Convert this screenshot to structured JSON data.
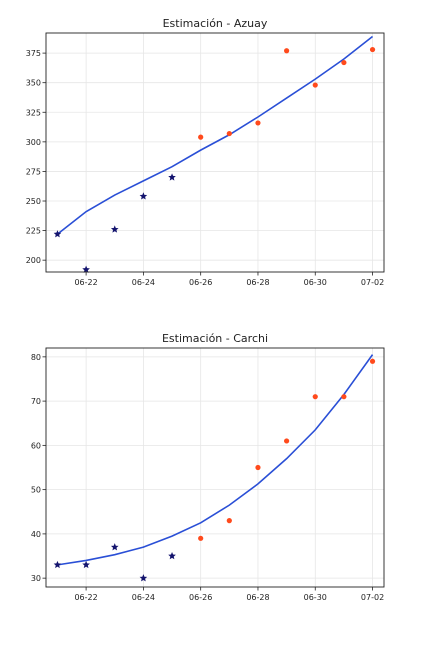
{
  "chart_data": [
    {
      "type": "scatter",
      "title": "Estimación - Azuay",
      "xlabel": "",
      "ylabel": "",
      "x_ticks": [
        "06-22",
        "06-24",
        "06-26",
        "06-28",
        "06-30",
        "07-02"
      ],
      "y_ticks": [
        200,
        225,
        250,
        275,
        300,
        325,
        350,
        375
      ],
      "ylim": [
        190,
        392
      ],
      "grid": true,
      "colors": {
        "observed": "#14146e",
        "estimated": "#ff4a1c",
        "fit": "#2a4fd6"
      },
      "series": [
        {
          "marker": "star",
          "x": [
            "06-21",
            "06-22",
            "06-23",
            "06-24",
            "06-25"
          ],
          "y": [
            222,
            192,
            226,
            254,
            270
          ]
        },
        {
          "marker": "circle",
          "x": [
            "06-26",
            "06-27",
            "06-28",
            "06-29",
            "06-30",
            "07-01",
            "07-02"
          ],
          "y": [
            304,
            307,
            316,
            377,
            348,
            367,
            378
          ]
        },
        {
          "type": "line",
          "x": [
            "06-21",
            "06-22",
            "06-23",
            "06-24",
            "06-25",
            "06-26",
            "06-27",
            "06-28",
            "06-29",
            "06-30",
            "07-01",
            "07-02"
          ],
          "y": [
            222,
            241,
            255,
            267,
            279,
            293,
            306,
            321,
            337,
            353,
            370,
            389
          ]
        }
      ]
    },
    {
      "type": "scatter",
      "title": "Estimación - Carchi",
      "xlabel": "",
      "ylabel": "",
      "x_ticks": [
        "06-22",
        "06-24",
        "06-26",
        "06-28",
        "06-30",
        "07-02"
      ],
      "y_ticks": [
        30,
        40,
        50,
        60,
        70,
        80
      ],
      "ylim": [
        28,
        82
      ],
      "grid": true,
      "colors": {
        "observed": "#14146e",
        "estimated": "#ff4a1c",
        "fit": "#2a4fd6"
      },
      "series": [
        {
          "marker": "star",
          "x": [
            "06-21",
            "06-22",
            "06-23",
            "06-24",
            "06-25"
          ],
          "y": [
            33,
            33,
            37,
            30,
            35
          ]
        },
        {
          "marker": "circle",
          "x": [
            "06-26",
            "06-27",
            "06-28",
            "06-29",
            "06-30",
            "07-01",
            "07-02"
          ],
          "y": [
            39,
            43,
            55,
            61,
            71,
            71,
            79
          ]
        },
        {
          "type": "line",
          "x": [
            "06-21",
            "06-22",
            "06-23",
            "06-24",
            "06-25",
            "06-26",
            "06-27",
            "06-28",
            "06-29",
            "06-30",
            "07-01",
            "07-02"
          ],
          "y": [
            33,
            34,
            35.3,
            37,
            39.5,
            42.5,
            46.5,
            51.3,
            57,
            63.5,
            71.5,
            80.5
          ]
        }
      ]
    }
  ]
}
